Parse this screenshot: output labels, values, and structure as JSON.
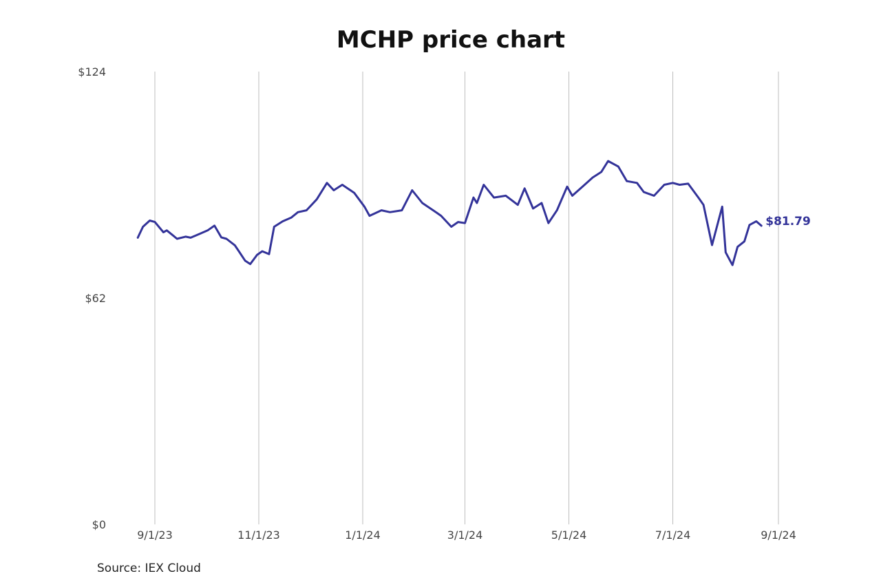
{
  "chart_data": {
    "type": "line",
    "title": "MCHP price chart",
    "xlabel": "",
    "ylabel": "",
    "ylim": [
      0,
      124
    ],
    "y_ticks": [
      {
        "value": 0,
        "label": "$0"
      },
      {
        "value": 62,
        "label": "$62"
      },
      {
        "value": 124,
        "label": "$124"
      }
    ],
    "x_ticks": [
      {
        "date": "2023-09-01",
        "label": "9/1/23"
      },
      {
        "date": "2023-11-01",
        "label": "11/1/23"
      },
      {
        "date": "2024-01-01",
        "label": "1/1/24"
      },
      {
        "date": "2024-03-01",
        "label": "3/1/24"
      },
      {
        "date": "2024-05-01",
        "label": "5/1/24"
      },
      {
        "date": "2024-07-01",
        "label": "7/1/24"
      },
      {
        "date": "2024-09-01",
        "label": "9/1/24"
      }
    ],
    "xlim": [
      "2023-08-22",
      "2024-09-01"
    ],
    "grid": "vertical",
    "line_color": "#333399",
    "last_value_label": "$81.79",
    "series": [
      {
        "name": "",
        "x": [
          "2023-08-22",
          "2023-08-25",
          "2023-08-29",
          "2023-09-01",
          "2023-09-06",
          "2023-09-08",
          "2023-09-12",
          "2023-09-14",
          "2023-09-19",
          "2023-09-22",
          "2023-09-27",
          "2023-10-02",
          "2023-10-06",
          "2023-10-10",
          "2023-10-13",
          "2023-10-18",
          "2023-10-20",
          "2023-10-24",
          "2023-10-27",
          "2023-10-31",
          "2023-11-03",
          "2023-11-07",
          "2023-11-10",
          "2023-11-15",
          "2023-11-20",
          "2023-11-24",
          "2023-11-29",
          "2023-12-05",
          "2023-12-11",
          "2023-12-15",
          "2023-12-20",
          "2023-12-27",
          "2024-01-02",
          "2024-01-05",
          "2024-01-12",
          "2024-01-17",
          "2024-01-24",
          "2024-01-30",
          "2024-02-05",
          "2024-02-12",
          "2024-02-16",
          "2024-02-22",
          "2024-02-26",
          "2024-03-01",
          "2024-03-06",
          "2024-03-08",
          "2024-03-12",
          "2024-03-18",
          "2024-03-25",
          "2024-04-01",
          "2024-04-05",
          "2024-04-10",
          "2024-04-15",
          "2024-04-19",
          "2024-04-24",
          "2024-04-30",
          "2024-05-03",
          "2024-05-09",
          "2024-05-15",
          "2024-05-20",
          "2024-05-24",
          "2024-05-30",
          "2024-06-04",
          "2024-06-10",
          "2024-06-14",
          "2024-06-20",
          "2024-06-26",
          "2024-07-01",
          "2024-07-05",
          "2024-07-10",
          "2024-07-16",
          "2024-07-19",
          "2024-07-24",
          "2024-07-30",
          "2024-08-01",
          "2024-08-05",
          "2024-08-08",
          "2024-08-12",
          "2024-08-15",
          "2024-08-19",
          "2024-08-22"
        ],
        "y": [
          78.5,
          81.5,
          83.2,
          82.8,
          80.0,
          80.5,
          79.0,
          78.2,
          78.8,
          78.5,
          79.5,
          80.5,
          81.8,
          78.6,
          78.2,
          76.4,
          75.0,
          72.2,
          71.3,
          73.8,
          74.8,
          74.0,
          81.5,
          83.0,
          84.0,
          85.5,
          86.0,
          89.0,
          93.5,
          91.5,
          93.0,
          90.8,
          87.0,
          84.5,
          86.0,
          85.5,
          86.0,
          91.5,
          88.0,
          85.8,
          84.5,
          81.5,
          82.8,
          82.5,
          89.5,
          88.0,
          93.0,
          89.5,
          90.0,
          87.5,
          92.0,
          86.5,
          88.0,
          82.5,
          86.0,
          92.5,
          90.0,
          92.5,
          95.0,
          96.5,
          99.5,
          98.0,
          94.0,
          93.5,
          91.0,
          90.0,
          93.0,
          93.5,
          93.0,
          93.3,
          89.5,
          87.5,
          76.5,
          87.0,
          74.5,
          71.0,
          76.0,
          77.5,
          82.0,
          83.0,
          81.79
        ]
      }
    ]
  },
  "source": "Source: IEX Cloud"
}
